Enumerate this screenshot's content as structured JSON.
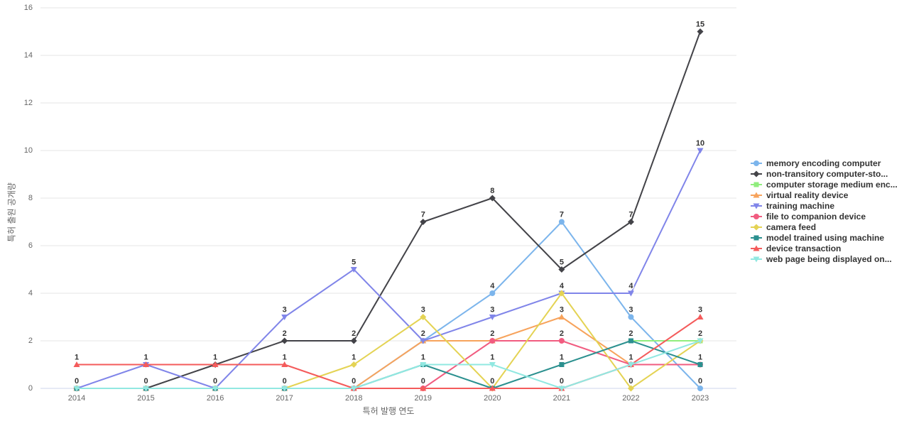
{
  "chart_data": {
    "type": "line",
    "title": "",
    "xlabel": "특허 발행 연도",
    "ylabel": "특허 출원 공개량",
    "x": [
      2014,
      2015,
      2016,
      2017,
      2018,
      2019,
      2020,
      2021,
      2022,
      2023
    ],
    "ylim": [
      0,
      16
    ],
    "ytick_interval": 2,
    "grid": true,
    "legend_position": "right",
    "data_labels": true,
    "colors": {
      "grid": "#e6e6e6",
      "axis_line": "#ccd6eb",
      "tick_text": "#666666",
      "legend_text": "#333333",
      "data_label_text": "#333333"
    },
    "series": [
      {
        "name": "memory encoding computer",
        "color": "#7cb5ec",
        "marker": "circle",
        "values": [
          0,
          0,
          0,
          0,
          0,
          2,
          4,
          7,
          3,
          0
        ]
      },
      {
        "name": "non-transitory computer-sto...",
        "color": "#434348",
        "marker": "diamond",
        "values": [
          0,
          0,
          1,
          2,
          2,
          7,
          8,
          5,
          7,
          15
        ]
      },
      {
        "name": "computer storage medium enc...",
        "color": "#90ed7d",
        "marker": "square",
        "values": [
          null,
          null,
          null,
          null,
          null,
          null,
          null,
          null,
          2,
          2
        ]
      },
      {
        "name": "virtual reality device",
        "color": "#f7a35c",
        "marker": "triangle",
        "values": [
          0,
          0,
          0,
          0,
          0,
          2,
          2,
          3,
          1,
          null
        ]
      },
      {
        "name": "training machine",
        "color": "#8085e9",
        "marker": "triangle-down",
        "values": [
          0,
          1,
          0,
          3,
          5,
          2,
          3,
          4,
          4,
          10
        ]
      },
      {
        "name": "file to companion device",
        "color": "#f15c80",
        "marker": "circle",
        "values": [
          0,
          0,
          0,
          0,
          0,
          0,
          2,
          2,
          1,
          1
        ]
      },
      {
        "name": "camera feed",
        "color": "#e4d354",
        "marker": "diamond",
        "values": [
          0,
          0,
          0,
          0,
          1,
          3,
          0,
          4,
          0,
          2
        ]
      },
      {
        "name": "model trained using machine",
        "color": "#2b908f",
        "marker": "square",
        "values": [
          0,
          0,
          0,
          0,
          0,
          1,
          0,
          1,
          2,
          1
        ]
      },
      {
        "name": "device transaction",
        "color": "#f45b5b",
        "marker": "triangle",
        "values": [
          1,
          1,
          1,
          1,
          0,
          0,
          0,
          0,
          1,
          3
        ]
      },
      {
        "name": "web page being displayed on...",
        "color": "#91e8e1",
        "marker": "triangle-down",
        "values": [
          0,
          0,
          0,
          0,
          0,
          1,
          1,
          0,
          1,
          2
        ]
      }
    ]
  }
}
